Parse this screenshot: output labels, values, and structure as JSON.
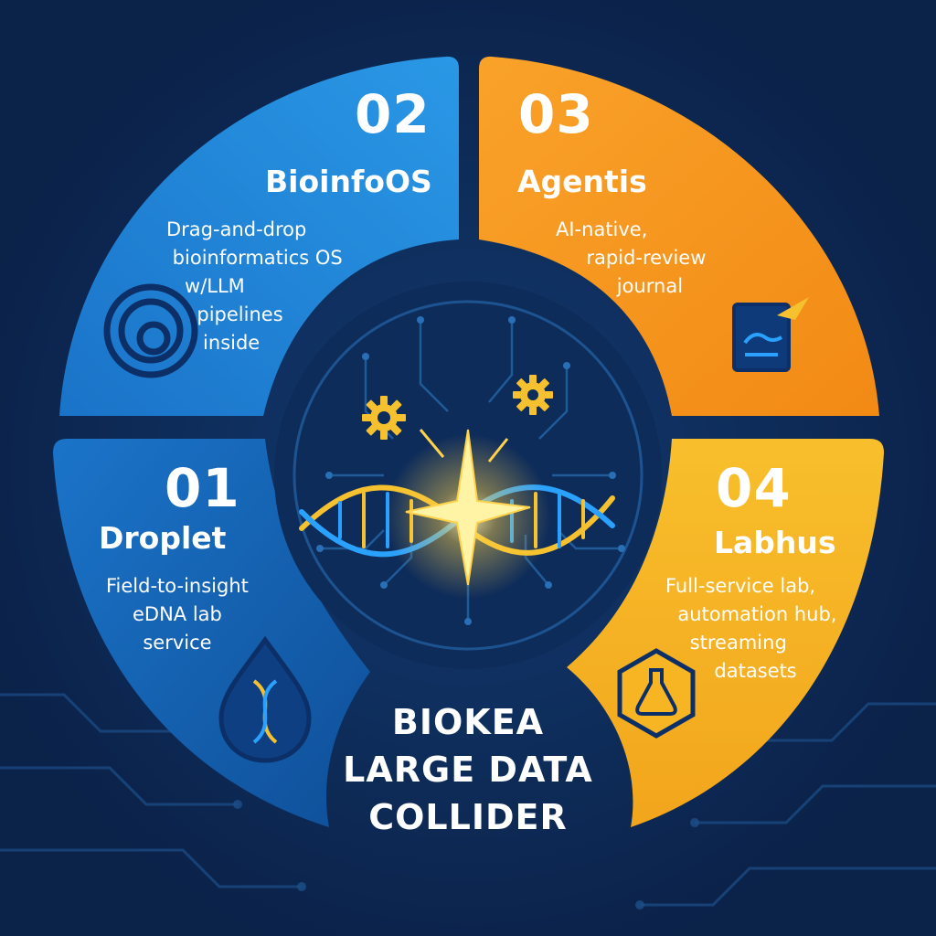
{
  "colors": {
    "background": "#0d2a55",
    "segment_01": "#1565b8",
    "segment_02": "#1e86d6",
    "segment_03": "#f7931e",
    "segment_04": "#f7b524",
    "accent_gold": "#f5c12e",
    "accent_blue": "#2aa0ff"
  },
  "segments": [
    {
      "number": "01",
      "name": "Droplet",
      "description": "Field-to-insight\neDNA lab\nservice",
      "icon": "dna-droplet-icon"
    },
    {
      "number": "02",
      "name": "BioinfoOS",
      "description": "Drag-and-drop\n bioinformatics OS\n   w/LLM\n     pipelines\n      inside",
      "icon": "concentric-rings-icon"
    },
    {
      "number": "03",
      "name": "Agentis",
      "description": "AI-native,\n     rapid-review\n          journal",
      "icon": "handshake-journal-icon"
    },
    {
      "number": "04",
      "name": "Labhus",
      "description": "Full-service lab,\n  automation hub,\n    streaming\n        datasets",
      "icon": "flask-hexagon-icon"
    }
  ],
  "center": {
    "title_line1": "BIOKEA",
    "title_line2": "LARGE DATA",
    "title_line3": "COLLIDER",
    "icons": [
      "gear-icon",
      "gear-icon",
      "dna-helix-icon",
      "spark-icon"
    ]
  }
}
